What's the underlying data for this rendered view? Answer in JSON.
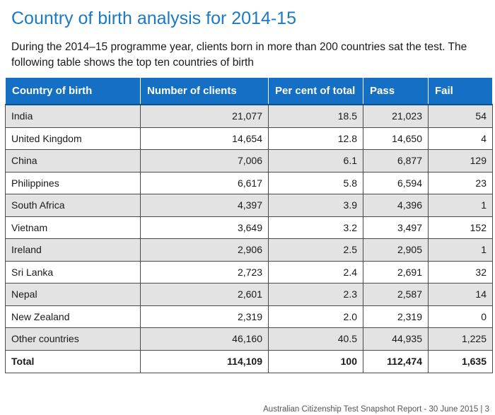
{
  "page": {
    "title": "Country of birth analysis for 2014-15",
    "intro": "During the 2014–15 programme year, clients born in more than 200 countries sat the test. The following table shows the top ten countries of birth",
    "footer": "Australian Citizenship Test Snapshot Report - 30 June 2015 | 3"
  },
  "table": {
    "headers": [
      "Country of birth",
      "Number of clients",
      "Per cent of total",
      "Pass",
      "Fail"
    ],
    "rows": [
      [
        "India",
        "21,077",
        "18.5",
        "21,023",
        "54"
      ],
      [
        "United Kingdom",
        "14,654",
        "12.8",
        "14,650",
        "4"
      ],
      [
        "China",
        "7,006",
        "6.1",
        "6,877",
        "129"
      ],
      [
        "Philippines",
        "6,617",
        "5.8",
        "6,594",
        "23"
      ],
      [
        "South Africa",
        "4,397",
        "3.9",
        "4,396",
        "1"
      ],
      [
        "Vietnam",
        "3,649",
        "3.2",
        "3,497",
        "152"
      ],
      [
        "Ireland",
        "2,906",
        "2.5",
        "2,905",
        "1"
      ],
      [
        "Sri Lanka",
        "2,723",
        "2.4",
        "2,691",
        "32"
      ],
      [
        "Nepal",
        "2,601",
        "2.3",
        "2,587",
        "14"
      ],
      [
        "New Zealand",
        "2,319",
        "2.0",
        "2,319",
        "0"
      ],
      [
        "Other countries",
        "46,160",
        "40.5",
        "44,935",
        "1,225"
      ]
    ],
    "total": [
      "Total",
      "114,109",
      "100",
      "112,474",
      "1,635"
    ]
  },
  "colors": {
    "title": "#1a7ac4",
    "header_bg": "#1570c5",
    "row_alt_bg": "#e3e3e3"
  }
}
